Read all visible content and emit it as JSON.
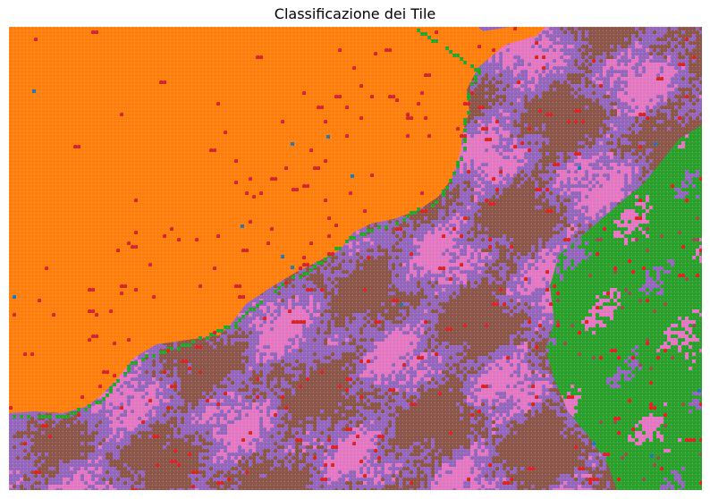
{
  "title": "Classificazione dei Tile",
  "colors": {
    "orange": "#ff7f0e",
    "purple": "#9467bd",
    "pink": "#e377c2",
    "brown": "#8c564b",
    "green": "#2ca02c",
    "red": "#d62728",
    "blue": "#1f77b4"
  },
  "legend": "none",
  "axes": "off"
}
